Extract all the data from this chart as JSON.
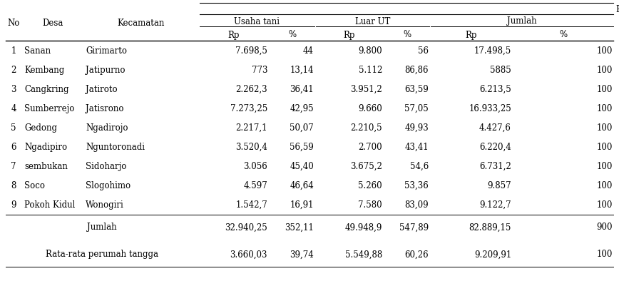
{
  "rows": [
    [
      "1",
      "Sanan",
      "Girimarto",
      "7.698,5",
      "44",
      "9.800",
      "56",
      "17.498,5",
      "100"
    ],
    [
      "2",
      "Kembang",
      "Jatipurno",
      "773",
      "13,14",
      "5.112",
      "86,86",
      "5885",
      "100"
    ],
    [
      "3",
      "Cangkring",
      "Jatiroto",
      "2.262,3",
      "36,41",
      "3.951,2",
      "63,59",
      "6.213,5",
      "100"
    ],
    [
      "4",
      "Sumberrejo",
      "Jatisrono",
      "7.273,25",
      "42,95",
      "9.660",
      "57,05",
      "16.933,25",
      "100"
    ],
    [
      "5",
      "Gedong",
      "Ngadirojo",
      "2.217,1",
      "50,07",
      "2.210,5",
      "49,93",
      "4.427,6",
      "100"
    ],
    [
      "6",
      "Ngadipiro",
      "Nguntoronadi",
      "3.520,4",
      "56,59",
      "2.700",
      "43,41",
      "6.220,4",
      "100"
    ],
    [
      "7",
      "sembukan",
      "Sidoharjo",
      "3.056",
      "45,40",
      "3.675,2",
      "54,6",
      "6.731,2",
      "100"
    ],
    [
      "8",
      "Soco",
      "Slogohimo",
      "4.597",
      "46,64",
      "5.260",
      "53,36",
      "9.857",
      "100"
    ],
    [
      "9",
      "Pokoh Kidul",
      "Wonogiri",
      "1.542,7",
      "16,91",
      "7.580",
      "83,09",
      "9.122,7",
      "100"
    ]
  ],
  "jumlah_row": [
    "32.940,25",
    "352,11",
    "49.948,9",
    "547,89",
    "82.889,15",
    "900"
  ],
  "rata_row": [
    "3.660,03",
    "39,74",
    "5.549,88",
    "60,26",
    "9.209,91",
    "100"
  ],
  "font_size": 8.5,
  "font_family": "DejaVu Serif",
  "bg_color": "#ffffff",
  "text_color": "#000000",
  "line_color": "#000000"
}
